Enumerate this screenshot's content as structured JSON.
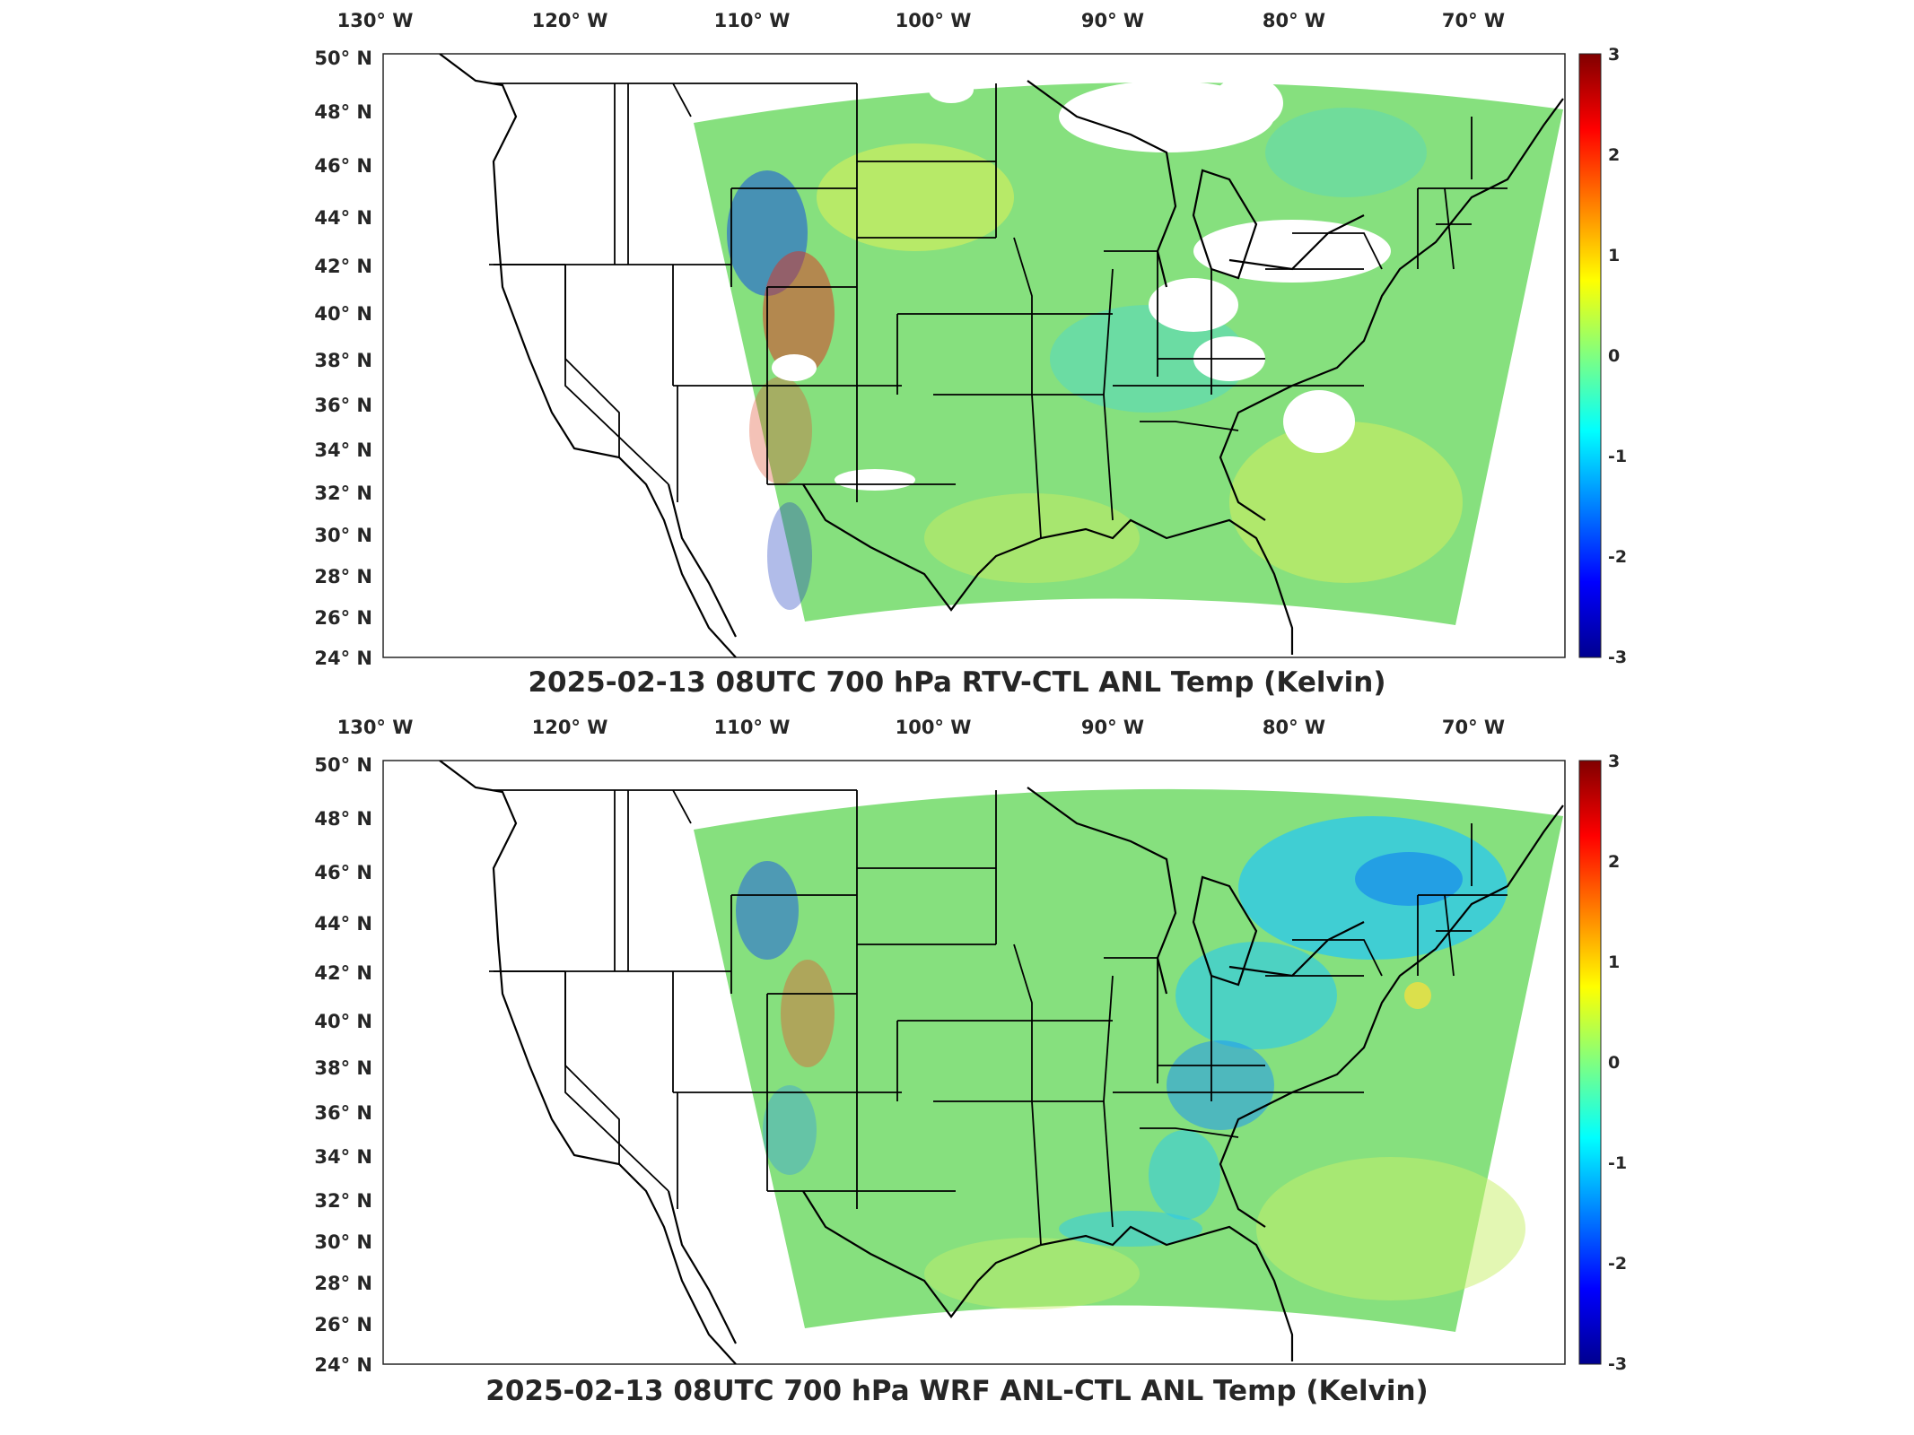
{
  "panels": [
    {
      "id": "top",
      "title": "2025-02-13 08UTC 700 hPa RTV-CTL ANL Temp (Kelvin)",
      "lon_labels": [
        "130° W",
        "120° W",
        "110° W",
        "100° W",
        "90° W",
        "80° W",
        "70° W"
      ],
      "lat_labels": [
        "50° N",
        "48° N",
        "46° N",
        "44° N",
        "42° N",
        "40° N",
        "38° N",
        "36° N",
        "34° N",
        "32° N",
        "30° N",
        "28° N",
        "26° N",
        "24° N"
      ],
      "colorbar": {
        "ticks": [
          "3",
          "2",
          "1",
          "0",
          "-1",
          "-2",
          "-3"
        ],
        "range": [
          -3,
          3
        ]
      },
      "field_description": "noisy large differences over western mountains; missing data (white) over Great Lakes and Ohio Valley"
    },
    {
      "id": "bottom",
      "title": "2025-02-13 08UTC 700 hPa WRF ANL-CTL ANL Temp (Kelvin)",
      "lon_labels": [
        "130° W",
        "120° W",
        "110° W",
        "100° W",
        "90° W",
        "80° W",
        "70° W"
      ],
      "lat_labels": [
        "50° N",
        "48° N",
        "46° N",
        "44° N",
        "42° N",
        "40° N",
        "38° N",
        "36° N",
        "34° N",
        "32° N",
        "30° N",
        "28° N",
        "26° N",
        "24° N"
      ],
      "colorbar": {
        "ticks": [
          "3",
          "2",
          "1",
          "0",
          "-1",
          "-2",
          "-3"
        ],
        "range": [
          -3,
          3
        ]
      },
      "field_description": "smooth field; negative (blue) anomaly over Northeast and Appalachians"
    }
  ],
  "colormap": [
    "#00008f",
    "#0000ff",
    "#0080ff",
    "#00ffff",
    "#80ff80",
    "#ffff00",
    "#ff8000",
    "#ff0000",
    "#800000"
  ],
  "field_background": "#7fe07a"
}
